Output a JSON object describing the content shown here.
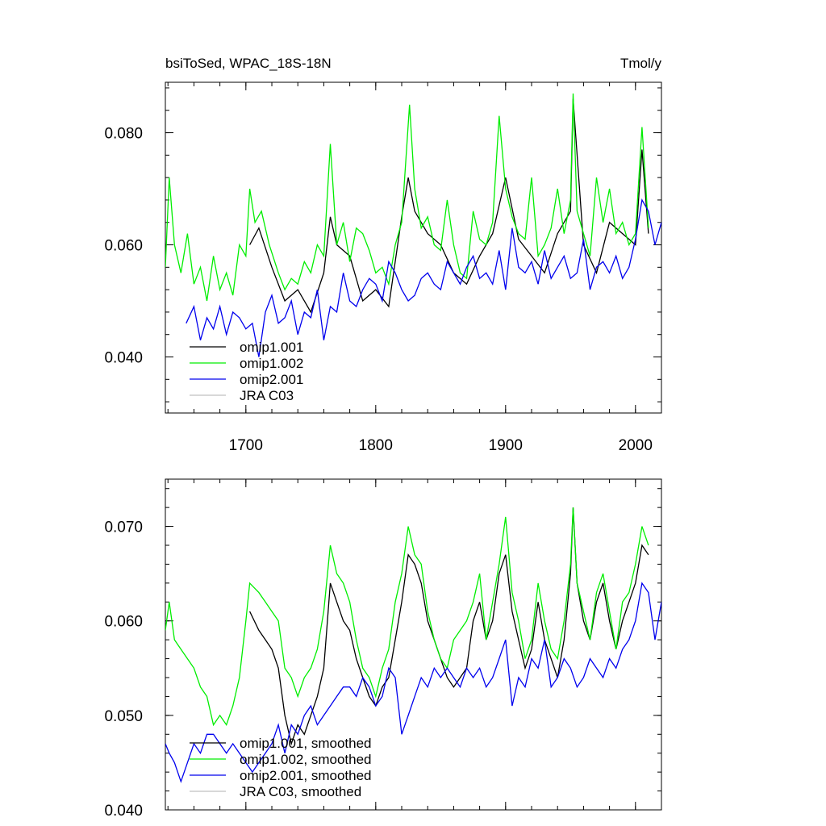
{
  "colors": {
    "omip1_001": "#000000",
    "omip1_002": "#00ee00",
    "omip2_001": "#0000ee",
    "jra_c03": "#c0c0c0"
  },
  "chart_data": [
    {
      "type": "line",
      "title_left": "bsiToSed, WPAC_18S-18N",
      "title_right": "Tmol/y",
      "xlabel": "",
      "ylabel": "",
      "xlim": [
        1638,
        2020
      ],
      "ylim": [
        0.03,
        0.089
      ],
      "xticks": [
        1700,
        1800,
        1900,
        2000
      ],
      "xtick_labels": [
        "1700",
        "1800",
        "1900",
        "2000"
      ],
      "yticks": [
        0.04,
        0.06,
        0.08
      ],
      "ytick_labels": [
        "0.040",
        "0.060",
        "0.080"
      ],
      "legend_position": "bottom-left",
      "series": [
        {
          "name": "omip1.001",
          "color_key": "omip1_001",
          "x": [
            1703,
            1710,
            1720,
            1730,
            1740,
            1750,
            1760,
            1765,
            1770,
            1780,
            1790,
            1800,
            1810,
            1820,
            1825,
            1830,
            1840,
            1850,
            1860,
            1870,
            1880,
            1890,
            1900,
            1910,
            1920,
            1930,
            1940,
            1950,
            1952,
            1960,
            1970,
            1980,
            1990,
            2000,
            2005,
            2010
          ],
          "values": [
            0.06,
            0.063,
            0.056,
            0.05,
            0.052,
            0.048,
            0.055,
            0.065,
            0.06,
            0.058,
            0.05,
            0.052,
            0.049,
            0.065,
            0.072,
            0.066,
            0.062,
            0.06,
            0.055,
            0.053,
            0.058,
            0.062,
            0.072,
            0.061,
            0.058,
            0.055,
            0.062,
            0.066,
            0.086,
            0.06,
            0.055,
            0.064,
            0.062,
            0.06,
            0.077,
            0.062
          ]
        },
        {
          "name": "omip1.002",
          "color_key": "omip1_002",
          "x": [
            1638,
            1641,
            1645,
            1650,
            1655,
            1660,
            1665,
            1670,
            1675,
            1680,
            1685,
            1690,
            1695,
            1700,
            1703,
            1707,
            1712,
            1718,
            1725,
            1730,
            1735,
            1740,
            1745,
            1750,
            1755,
            1760,
            1765,
            1770,
            1775,
            1780,
            1785,
            1790,
            1795,
            1800,
            1805,
            1810,
            1815,
            1820,
            1826,
            1830,
            1835,
            1840,
            1845,
            1850,
            1855,
            1860,
            1865,
            1870,
            1875,
            1880,
            1885,
            1890,
            1895,
            1900,
            1905,
            1910,
            1915,
            1920,
            1925,
            1930,
            1935,
            1940,
            1945,
            1950,
            1952,
            1955,
            1960,
            1965,
            1970,
            1975,
            1980,
            1985,
            1990,
            1995,
            2000,
            2005,
            2010
          ],
          "values": [
            0.056,
            0.072,
            0.06,
            0.055,
            0.062,
            0.053,
            0.056,
            0.05,
            0.058,
            0.052,
            0.055,
            0.051,
            0.06,
            0.058,
            0.07,
            0.064,
            0.066,
            0.06,
            0.055,
            0.052,
            0.054,
            0.053,
            0.057,
            0.055,
            0.06,
            0.058,
            0.078,
            0.06,
            0.064,
            0.057,
            0.063,
            0.062,
            0.059,
            0.055,
            0.056,
            0.053,
            0.06,
            0.064,
            0.085,
            0.07,
            0.063,
            0.065,
            0.06,
            0.059,
            0.068,
            0.06,
            0.055,
            0.054,
            0.066,
            0.061,
            0.06,
            0.064,
            0.083,
            0.07,
            0.065,
            0.062,
            0.061,
            0.072,
            0.058,
            0.06,
            0.063,
            0.07,
            0.062,
            0.068,
            0.087,
            0.066,
            0.062,
            0.058,
            0.072,
            0.064,
            0.07,
            0.062,
            0.064,
            0.06,
            0.062,
            0.081,
            0.063
          ]
        },
        {
          "name": "omip2.001",
          "color_key": "omip2_001",
          "x": [
            1654,
            1660,
            1665,
            1670,
            1675,
            1680,
            1685,
            1690,
            1695,
            1700,
            1705,
            1710,
            1715,
            1720,
            1725,
            1730,
            1735,
            1740,
            1745,
            1750,
            1755,
            1760,
            1765,
            1770,
            1775,
            1780,
            1785,
            1790,
            1795,
            1800,
            1805,
            1810,
            1815,
            1820,
            1825,
            1830,
            1835,
            1840,
            1845,
            1850,
            1855,
            1860,
            1865,
            1870,
            1875,
            1880,
            1885,
            1890,
            1895,
            1900,
            1905,
            1910,
            1915,
            1920,
            1925,
            1930,
            1935,
            1940,
            1945,
            1950,
            1955,
            1960,
            1965,
            1970,
            1975,
            1980,
            1985,
            1990,
            1995,
            2000,
            2005,
            2010,
            2015,
            2020
          ],
          "values": [
            0.046,
            0.049,
            0.043,
            0.047,
            0.045,
            0.049,
            0.044,
            0.048,
            0.047,
            0.045,
            0.046,
            0.04,
            0.048,
            0.051,
            0.046,
            0.047,
            0.05,
            0.044,
            0.048,
            0.047,
            0.052,
            0.043,
            0.049,
            0.048,
            0.055,
            0.05,
            0.049,
            0.052,
            0.054,
            0.053,
            0.05,
            0.057,
            0.055,
            0.052,
            0.05,
            0.051,
            0.054,
            0.055,
            0.053,
            0.052,
            0.057,
            0.055,
            0.053,
            0.056,
            0.058,
            0.054,
            0.055,
            0.053,
            0.059,
            0.052,
            0.063,
            0.056,
            0.055,
            0.057,
            0.053,
            0.059,
            0.054,
            0.056,
            0.058,
            0.054,
            0.055,
            0.061,
            0.052,
            0.056,
            0.057,
            0.055,
            0.058,
            0.054,
            0.056,
            0.061,
            0.068,
            0.066,
            0.06,
            0.064
          ]
        },
        {
          "name": "JRA C03",
          "color_key": "jra_c03",
          "x": [],
          "values": []
        }
      ]
    },
    {
      "type": "line",
      "title_left": "",
      "title_right": "",
      "xlabel": "",
      "ylabel": "",
      "xlim": [
        1638,
        2020
      ],
      "ylim": [
        0.04,
        0.075
      ],
      "xticks": [
        1700,
        1800,
        1900,
        2000
      ],
      "xtick_labels": [],
      "yticks": [
        0.04,
        0.05,
        0.06,
        0.07
      ],
      "ytick_labels": [
        "0.040",
        "0.050",
        "0.060",
        "0.070"
      ],
      "legend_position": "bottom-left",
      "series": [
        {
          "name": "omip1.001, smoothed",
          "color_key": "omip1_001",
          "x": [
            1703,
            1710,
            1715,
            1720,
            1725,
            1730,
            1735,
            1740,
            1745,
            1750,
            1755,
            1760,
            1765,
            1770,
            1775,
            1780,
            1785,
            1790,
            1795,
            1800,
            1805,
            1810,
            1815,
            1820,
            1825,
            1830,
            1835,
            1840,
            1845,
            1850,
            1855,
            1860,
            1865,
            1870,
            1875,
            1880,
            1885,
            1890,
            1895,
            1900,
            1905,
            1910,
            1915,
            1920,
            1925,
            1930,
            1935,
            1940,
            1945,
            1950,
            1952,
            1955,
            1960,
            1965,
            1970,
            1975,
            1980,
            1985,
            1990,
            1995,
            2000,
            2005,
            2010
          ],
          "values": [
            0.061,
            0.059,
            0.058,
            0.057,
            0.055,
            0.05,
            0.047,
            0.049,
            0.048,
            0.05,
            0.052,
            0.055,
            0.064,
            0.062,
            0.06,
            0.059,
            0.056,
            0.054,
            0.052,
            0.051,
            0.053,
            0.054,
            0.058,
            0.062,
            0.067,
            0.066,
            0.064,
            0.06,
            0.058,
            0.056,
            0.054,
            0.053,
            0.054,
            0.055,
            0.06,
            0.062,
            0.058,
            0.06,
            0.065,
            0.067,
            0.061,
            0.058,
            0.055,
            0.057,
            0.062,
            0.058,
            0.056,
            0.054,
            0.058,
            0.065,
            0.072,
            0.064,
            0.06,
            0.058,
            0.062,
            0.064,
            0.06,
            0.057,
            0.06,
            0.062,
            0.064,
            0.068,
            0.067
          ]
        },
        {
          "name": "omip1.002, smoothed",
          "color_key": "omip1_002",
          "x": [
            1638,
            1641,
            1645,
            1650,
            1655,
            1660,
            1665,
            1670,
            1675,
            1680,
            1685,
            1690,
            1695,
            1700,
            1703,
            1710,
            1715,
            1720,
            1725,
            1730,
            1735,
            1740,
            1745,
            1750,
            1755,
            1760,
            1765,
            1770,
            1775,
            1780,
            1785,
            1790,
            1795,
            1800,
            1805,
            1810,
            1815,
            1820,
            1825,
            1830,
            1835,
            1840,
            1845,
            1850,
            1855,
            1860,
            1865,
            1870,
            1875,
            1880,
            1885,
            1890,
            1895,
            1900,
            1905,
            1910,
            1915,
            1920,
            1925,
            1930,
            1935,
            1940,
            1945,
            1950,
            1952,
            1955,
            1960,
            1965,
            1970,
            1975,
            1980,
            1985,
            1990,
            1995,
            2000,
            2005,
            2010
          ],
          "values": [
            0.059,
            0.062,
            0.058,
            0.057,
            0.056,
            0.055,
            0.053,
            0.052,
            0.049,
            0.05,
            0.049,
            0.051,
            0.054,
            0.06,
            0.064,
            0.063,
            0.062,
            0.061,
            0.06,
            0.055,
            0.054,
            0.052,
            0.054,
            0.055,
            0.057,
            0.061,
            0.068,
            0.065,
            0.064,
            0.062,
            0.058,
            0.055,
            0.054,
            0.052,
            0.055,
            0.057,
            0.062,
            0.065,
            0.07,
            0.067,
            0.066,
            0.061,
            0.058,
            0.056,
            0.055,
            0.058,
            0.059,
            0.06,
            0.062,
            0.065,
            0.058,
            0.062,
            0.066,
            0.071,
            0.063,
            0.06,
            0.056,
            0.058,
            0.064,
            0.06,
            0.057,
            0.056,
            0.06,
            0.066,
            0.072,
            0.064,
            0.061,
            0.058,
            0.063,
            0.065,
            0.061,
            0.057,
            0.062,
            0.063,
            0.066,
            0.07,
            0.068
          ]
        },
        {
          "name": "omip2.001, smoothed",
          "color_key": "omip2_001",
          "x": [
            1638,
            1641,
            1645,
            1650,
            1655,
            1660,
            1665,
            1670,
            1675,
            1680,
            1685,
            1690,
            1695,
            1700,
            1705,
            1710,
            1715,
            1720,
            1725,
            1730,
            1735,
            1740,
            1745,
            1750,
            1755,
            1760,
            1765,
            1770,
            1775,
            1780,
            1785,
            1790,
            1795,
            1800,
            1805,
            1810,
            1815,
            1820,
            1825,
            1830,
            1835,
            1840,
            1845,
            1850,
            1855,
            1860,
            1865,
            1870,
            1875,
            1880,
            1885,
            1890,
            1895,
            1900,
            1905,
            1910,
            1915,
            1920,
            1925,
            1930,
            1935,
            1940,
            1945,
            1950,
            1955,
            1960,
            1965,
            1970,
            1975,
            1980,
            1985,
            1990,
            1995,
            2000,
            2005,
            2010,
            2015,
            2020
          ],
          "values": [
            0.047,
            0.046,
            0.045,
            0.043,
            0.045,
            0.047,
            0.046,
            0.048,
            0.048,
            0.047,
            0.046,
            0.047,
            0.046,
            0.045,
            0.044,
            0.045,
            0.046,
            0.047,
            0.049,
            0.046,
            0.049,
            0.048,
            0.05,
            0.051,
            0.049,
            0.05,
            0.051,
            0.052,
            0.053,
            0.053,
            0.052,
            0.054,
            0.053,
            0.051,
            0.052,
            0.055,
            0.054,
            0.048,
            0.05,
            0.052,
            0.054,
            0.053,
            0.055,
            0.054,
            0.055,
            0.054,
            0.053,
            0.055,
            0.054,
            0.055,
            0.053,
            0.054,
            0.056,
            0.058,
            0.051,
            0.054,
            0.053,
            0.056,
            0.055,
            0.058,
            0.053,
            0.054,
            0.056,
            0.055,
            0.053,
            0.054,
            0.056,
            0.055,
            0.054,
            0.056,
            0.055,
            0.057,
            0.058,
            0.06,
            0.064,
            0.063,
            0.058,
            0.062
          ]
        },
        {
          "name": "JRA C03, smoothed",
          "color_key": "jra_c03",
          "x": [],
          "values": []
        }
      ]
    }
  ]
}
